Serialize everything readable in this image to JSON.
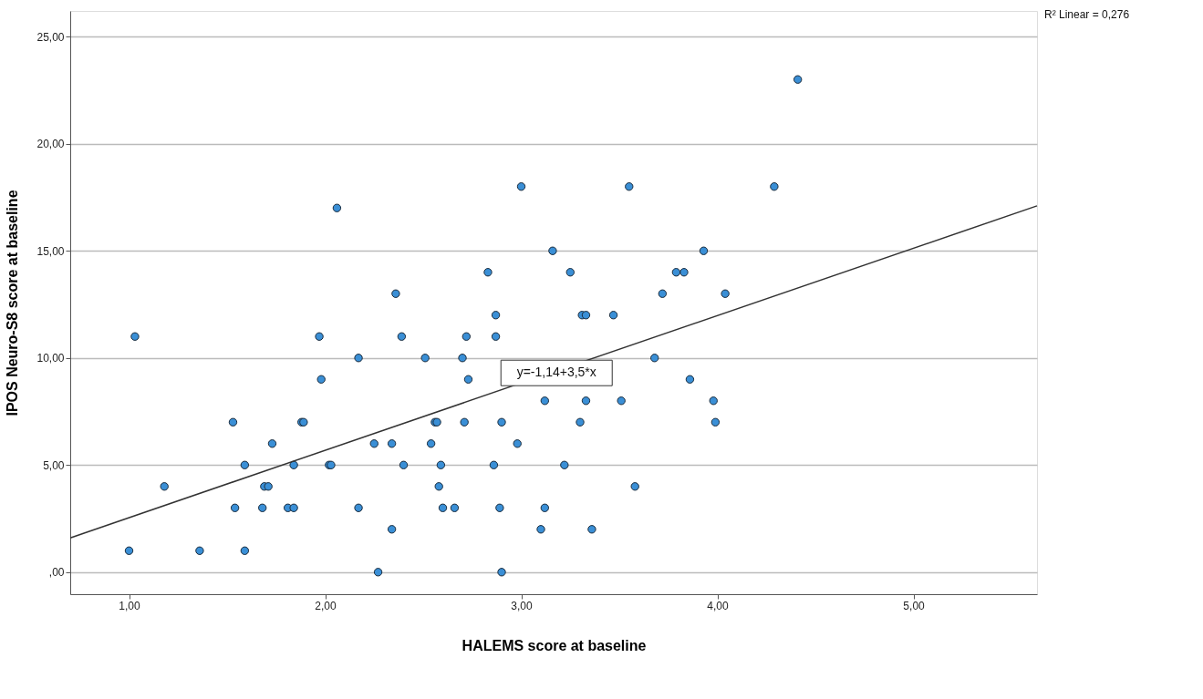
{
  "chart_data": {
    "type": "scatter",
    "xlabel": "HALEMS score at baseline",
    "ylabel": "IPOS Neuro-S8 score at baseline",
    "annotations": [
      {
        "text": "y=-1,14+3,5*x",
        "x": 3.18,
        "y": 9.3
      },
      "R² Linear = 0,276"
    ],
    "xlim": [
      0.7,
      5.63
    ],
    "ylim": [
      -1.03,
      26.2
    ],
    "xticks": [
      {
        "value": 1,
        "label": "1,00"
      },
      {
        "value": 2,
        "label": "2,00"
      },
      {
        "value": 3,
        "label": "3,00"
      },
      {
        "value": 4,
        "label": "4,00"
      },
      {
        "value": 5,
        "label": "5,00"
      }
    ],
    "yticks": [
      {
        "value": 0,
        "label": ",00"
      },
      {
        "value": 5,
        "label": "5,00"
      },
      {
        "value": 10,
        "label": "10,00"
      },
      {
        "value": 15,
        "label": "15,00"
      },
      {
        "value": 20,
        "label": "20,00"
      },
      {
        "value": 25,
        "label": "25,00"
      }
    ],
    "grid": "y",
    "marker": "circle",
    "series": [
      {
        "color": "#3a8fd6",
        "x": [
          1.0,
          1.03,
          1.18,
          1.36,
          1.53,
          1.54,
          1.59,
          1.59,
          1.68,
          1.69,
          1.71,
          1.73,
          1.81,
          1.84,
          1.84,
          1.88,
          1.89,
          1.97,
          1.98,
          2.02,
          2.03,
          2.06,
          2.17,
          2.17,
          2.25,
          2.27,
          2.34,
          2.34,
          2.36,
          2.39,
          2.4,
          2.51,
          2.54,
          2.56,
          2.57,
          2.58,
          2.59,
          2.6,
          2.66,
          2.7,
          2.71,
          2.72,
          2.73,
          2.83,
          2.86,
          2.87,
          2.87,
          2.89,
          2.9,
          2.9,
          2.98,
          3.0,
          3.1,
          3.12,
          3.12,
          3.16,
          3.22,
          3.25,
          3.3,
          3.31,
          3.33,
          3.33,
          3.36,
          3.47,
          3.51,
          3.55,
          3.58,
          3.68,
          3.72,
          3.79,
          3.83,
          3.86,
          3.93,
          3.98,
          3.99,
          4.04,
          4.29,
          4.41
        ],
        "values": [
          1,
          11,
          4,
          1,
          7,
          3,
          5,
          1,
          3,
          4,
          4,
          6,
          3,
          5,
          3,
          7,
          7,
          11,
          9,
          5,
          5,
          17,
          10,
          3,
          6,
          0,
          2,
          6,
          13,
          11,
          5,
          10,
          6,
          7,
          7,
          4,
          5,
          3,
          3,
          10,
          7,
          11,
          9,
          14,
          5,
          12,
          11,
          3,
          0,
          7,
          6,
          18,
          2,
          3,
          8,
          15,
          5,
          14,
          7,
          12,
          12,
          8,
          2,
          12,
          8,
          18,
          4,
          10,
          13,
          14,
          14,
          9,
          15,
          8,
          7,
          13,
          18,
          23
        ]
      },
      {
        "type": "line",
        "color": "#333333",
        "line_style": "solid",
        "marker": "none",
        "x": [
          0.7,
          5.63
        ],
        "values": [
          1.6,
          17.1
        ]
      }
    ]
  }
}
